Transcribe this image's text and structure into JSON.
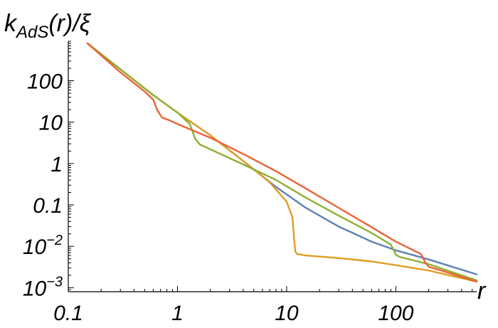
{
  "chart_data": {
    "type": "line",
    "xscale": "log",
    "yscale": "log",
    "xlim": [
      0.1,
      550
    ],
    "ylim": [
      0.0008,
      900
    ],
    "grid": false,
    "legend": "none",
    "ylabel_parts": {
      "k": "k",
      "sub": "AdS",
      "rest": "(r)/ξ"
    },
    "xlabel": "r",
    "x_ticks": [
      {
        "value": 0.1,
        "label": "0.1"
      },
      {
        "value": 1,
        "label": "1"
      },
      {
        "value": 10,
        "label": "10"
      },
      {
        "value": 100,
        "label": "100"
      }
    ],
    "y_ticks": [
      {
        "value": 0.001,
        "base": "10",
        "exp": "−3"
      },
      {
        "value": 0.01,
        "base": "10",
        "exp": "−2"
      },
      {
        "value": 0.1,
        "base": "0.1",
        "exp": ""
      },
      {
        "value": 1,
        "base": "1",
        "exp": ""
      },
      {
        "value": 10,
        "base": "10",
        "exp": ""
      },
      {
        "value": 100,
        "base": "100",
        "exp": ""
      }
    ],
    "series": [
      {
        "color": "#5e81b5",
        "x": [
          0.15,
          0.3,
          0.6,
          1,
          2,
          4,
          8,
          15,
          30,
          60,
          100,
          200,
          550
        ],
        "y": [
          800,
          190,
          45,
          17,
          4.8,
          1.15,
          0.27,
          0.085,
          0.03,
          0.013,
          0.008,
          0.0048,
          0.0021
        ]
      },
      {
        "color": "#e19c24",
        "x": [
          0.15,
          0.3,
          0.6,
          1,
          2,
          4,
          7,
          10,
          11.3,
          11.7,
          12,
          12.5,
          15,
          30,
          60,
          100,
          200,
          550
        ],
        "y": [
          800,
          190,
          45,
          17,
          4.8,
          1.15,
          0.35,
          0.12,
          0.05,
          0.015,
          0.0075,
          0.0065,
          0.006,
          0.0052,
          0.0043,
          0.0035,
          0.0026,
          0.0014
        ]
      },
      {
        "color": "#8fb032",
        "x": [
          0.15,
          0.3,
          0.6,
          1,
          1.3,
          1.45,
          1.6,
          2,
          4,
          8,
          15,
          30,
          60,
          90,
          97,
          100,
          110,
          200,
          550
        ],
        "y": [
          800,
          190,
          45,
          17,
          9,
          4,
          2.9,
          2.2,
          0.95,
          0.4,
          0.15,
          0.055,
          0.021,
          0.011,
          0.0075,
          0.0062,
          0.0055,
          0.0037,
          0.0015
        ]
      },
      {
        "color": "#eb6235",
        "x": [
          0.15,
          0.3,
          0.5,
          0.6,
          0.65,
          0.72,
          0.85,
          1,
          2,
          4,
          8,
          15,
          30,
          60,
          100,
          170,
          185,
          200,
          250,
          550
        ],
        "y": [
          800,
          160,
          55,
          35,
          20,
          13,
          11,
          9,
          4.2,
          1.7,
          0.65,
          0.25,
          0.085,
          0.029,
          0.013,
          0.0065,
          0.0042,
          0.0032,
          0.0027,
          0.0014
        ]
      }
    ]
  }
}
